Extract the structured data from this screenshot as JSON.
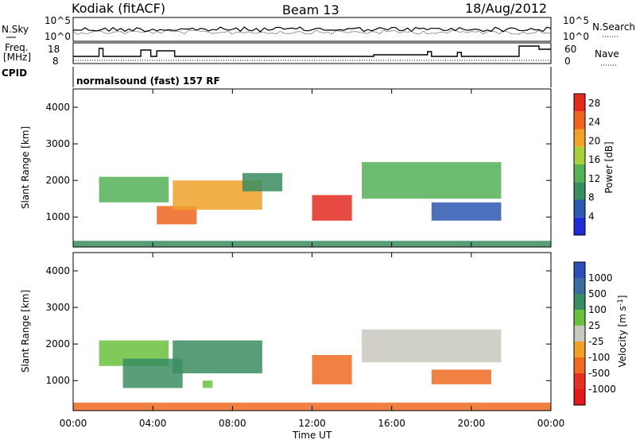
{
  "header": {
    "station": "Kodiak (fitACF)",
    "beam": "Beam 13",
    "date": "18/Aug/2012"
  },
  "noise_panel": {
    "left_label": "N.Sky",
    "right_label": "N.Search",
    "ticks_left": [
      "10^5",
      "10^0"
    ],
    "ticks_right": [
      "10^5",
      "10^0"
    ]
  },
  "freq_panel": {
    "left_label_top": "Freq.",
    "left_label_bottom": "[MHz]",
    "right_label": "Nave",
    "ticks_left": [
      "18",
      "8"
    ],
    "ticks_right": [
      "60",
      "0"
    ]
  },
  "cpid_panel": {
    "left_label": "CPID",
    "program": "normalsound (fast) 157 RF"
  },
  "colors": {
    "power_scale": [
      "#1f2bd6",
      "#2d58b0",
      "#3a8d5e",
      "#55b056",
      "#a7cf3e",
      "#f0a22a",
      "#ef6520",
      "#e32a1f"
    ],
    "velocity_scale": [
      "#2f4fb8",
      "#3b6ca0",
      "#3a8d62",
      "#6cc040",
      "#c8c8c0",
      "#efa12a",
      "#ef6a22",
      "#e33020",
      "#e31a1a"
    ]
  },
  "chart_data": [
    {
      "type": "heatmap",
      "title": "",
      "ylabel": "Slant Range [km]",
      "xlabel": "",
      "ylim": [
        180,
        4500
      ],
      "xlim": [
        "00:00",
        "24:00"
      ],
      "y_ticks": [
        1000,
        2000,
        3000,
        4000
      ],
      "colorbar": {
        "label": "Power [dB]",
        "ticks": [
          4,
          8,
          12,
          16,
          20,
          24,
          28
        ],
        "range": [
          0,
          30
        ]
      },
      "echo_regions": [
        {
          "t_start": 1.3,
          "t_end": 4.8,
          "r_min": 1400,
          "r_max": 2100,
          "value": 14
        },
        {
          "t_start": 4.2,
          "t_end": 6.2,
          "r_min": 800,
          "r_max": 1300,
          "value": 26
        },
        {
          "t_start": 5.0,
          "t_end": 9.5,
          "r_min": 1200,
          "r_max": 2000,
          "value": 20
        },
        {
          "t_start": 8.5,
          "t_end": 10.5,
          "r_min": 1700,
          "r_max": 2200,
          "value": 8
        },
        {
          "t_start": 12.0,
          "t_end": 14.0,
          "r_min": 900,
          "r_max": 1600,
          "value": 27
        },
        {
          "t_start": 14.5,
          "t_end": 21.5,
          "r_min": 1500,
          "r_max": 2500,
          "value": 14
        },
        {
          "t_start": 18.0,
          "t_end": 21.5,
          "r_min": 900,
          "r_max": 1400,
          "value": 6
        },
        {
          "t_start": 0.0,
          "t_end": 24.0,
          "r_min": 180,
          "r_max": 350,
          "value": 8
        }
      ]
    },
    {
      "type": "heatmap",
      "title": "",
      "ylabel": "Slant Range [km]",
      "xlabel": "Time UT",
      "ylim": [
        180,
        4500
      ],
      "xlim": [
        "00:00",
        "24:00"
      ],
      "y_ticks": [
        1000,
        2000,
        3000,
        4000
      ],
      "x_ticks": [
        "00:00",
        "04:00",
        "08:00",
        "12:00",
        "16:00",
        "20:00",
        "00:00"
      ],
      "colorbar": {
        "label": "Velocity [m s^-1]",
        "ticks": [
          "1000",
          "500",
          "100",
          "25",
          "-25",
          "-100",
          "-500",
          "-1000"
        ]
      },
      "echo_regions": [
        {
          "t_start": 1.3,
          "t_end": 4.8,
          "r_min": 1400,
          "r_max": 2100,
          "value": 25
        },
        {
          "t_start": 2.5,
          "t_end": 5.5,
          "r_min": 800,
          "r_max": 1600,
          "value": 300
        },
        {
          "t_start": 5.0,
          "t_end": 9.5,
          "r_min": 1200,
          "r_max": 2100,
          "value": 200
        },
        {
          "t_start": 6.5,
          "t_end": 7.0,
          "r_min": 800,
          "r_max": 1000,
          "value": 60
        },
        {
          "t_start": 12.0,
          "t_end": 14.0,
          "r_min": 900,
          "r_max": 1700,
          "value": -200
        },
        {
          "t_start": 14.5,
          "t_end": 21.5,
          "r_min": 1500,
          "r_max": 2400,
          "value": 0
        },
        {
          "t_start": 18.0,
          "t_end": 21.0,
          "r_min": 900,
          "r_max": 1300,
          "value": -150
        },
        {
          "t_start": 0.0,
          "t_end": 24.0,
          "r_min": 180,
          "r_max": 400,
          "value": -150
        }
      ]
    }
  ]
}
